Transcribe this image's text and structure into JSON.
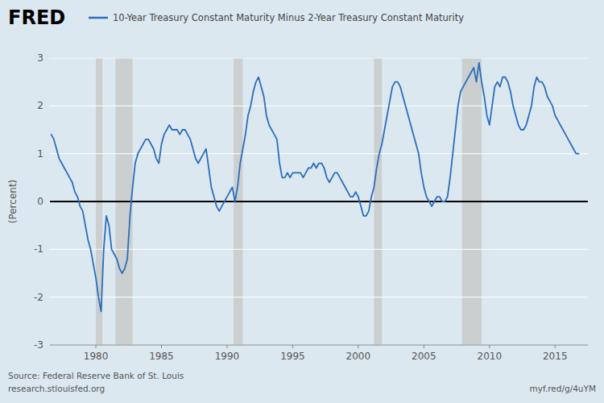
{
  "chart_data": {
    "type": "line",
    "ylabel": "(Percent)",
    "annotations": [
      "FRED",
      "Source: Federal Reserve Bank of St. Louis",
      "research.stlouisfed.org",
      "myf.red/g/4uYM"
    ],
    "legend": "top left",
    "grid": true,
    "xlim": [
      1976.5,
      2017.5
    ],
    "xticks": [
      1980,
      1985,
      1990,
      1995,
      2000,
      2005,
      2010,
      2015
    ],
    "ylim": [
      -3,
      3
    ],
    "yticks": [
      -3,
      -2,
      -1,
      0,
      1,
      2,
      3
    ],
    "recessions": [
      [
        1980.0,
        1980.5
      ],
      [
        1981.5,
        1982.8
      ],
      [
        1990.5,
        1991.2
      ],
      [
        2001.2,
        2001.8
      ],
      [
        2007.9,
        2009.4
      ]
    ],
    "x": [
      1976.6,
      1976.8,
      1977.0,
      1977.2,
      1977.4,
      1977.6,
      1977.8,
      1978.0,
      1978.2,
      1978.4,
      1978.6,
      1978.8,
      1979.0,
      1979.2,
      1979.4,
      1979.6,
      1979.8,
      1980.0,
      1980.2,
      1980.4,
      1980.6,
      1980.8,
      1981.0,
      1981.2,
      1981.4,
      1981.6,
      1981.8,
      1982.0,
      1982.2,
      1982.4,
      1982.6,
      1982.8,
      1983.0,
      1983.2,
      1983.4,
      1983.6,
      1983.8,
      1984.0,
      1984.2,
      1984.4,
      1984.6,
      1984.8,
      1985.0,
      1985.2,
      1985.4,
      1985.6,
      1985.8,
      1986.0,
      1986.2,
      1986.4,
      1986.6,
      1986.8,
      1987.0,
      1987.2,
      1987.4,
      1987.6,
      1987.8,
      1988.0,
      1988.2,
      1988.4,
      1988.6,
      1988.8,
      1989.0,
      1989.2,
      1989.4,
      1989.6,
      1989.8,
      1990.0,
      1990.2,
      1990.4,
      1990.6,
      1990.8,
      1991.0,
      1991.2,
      1991.4,
      1991.6,
      1991.8,
      1992.0,
      1992.2,
      1992.4,
      1992.6,
      1992.8,
      1993.0,
      1993.2,
      1993.4,
      1993.6,
      1993.8,
      1994.0,
      1994.2,
      1994.4,
      1994.6,
      1994.8,
      1995.0,
      1995.2,
      1995.4,
      1995.6,
      1995.8,
      1996.0,
      1996.2,
      1996.4,
      1996.6,
      1996.8,
      1997.0,
      1997.2,
      1997.4,
      1997.6,
      1997.8,
      1998.0,
      1998.2,
      1998.4,
      1998.6,
      1998.8,
      1999.0,
      1999.2,
      1999.4,
      1999.6,
      1999.8,
      2000.0,
      2000.2,
      2000.4,
      2000.6,
      2000.8,
      2001.0,
      2001.2,
      2001.4,
      2001.6,
      2001.8,
      2002.0,
      2002.2,
      2002.4,
      2002.6,
      2002.8,
      2003.0,
      2003.2,
      2003.4,
      2003.6,
      2003.8,
      2004.0,
      2004.2,
      2004.4,
      2004.6,
      2004.8,
      2005.0,
      2005.2,
      2005.4,
      2005.6,
      2005.8,
      2006.0,
      2006.2,
      2006.4,
      2006.6,
      2006.8,
      2007.0,
      2007.2,
      2007.4,
      2007.6,
      2007.8,
      2008.0,
      2008.2,
      2008.4,
      2008.6,
      2008.8,
      2009.0,
      2009.2,
      2009.4,
      2009.6,
      2009.8,
      2010.0,
      2010.2,
      2010.4,
      2010.6,
      2010.8,
      2011.0,
      2011.2,
      2011.4,
      2011.6,
      2011.8,
      2012.0,
      2012.2,
      2012.4,
      2012.6,
      2012.8,
      2013.0,
      2013.2,
      2013.4,
      2013.6,
      2013.8,
      2014.0,
      2014.2,
      2014.4,
      2014.6,
      2014.8,
      2015.0,
      2015.2,
      2015.4,
      2015.6,
      2015.8,
      2016.0,
      2016.2,
      2016.4,
      2016.6,
      2016.8
    ],
    "series": [
      {
        "name": "10-Year Treasury Constant Maturity Minus 2-Year Treasury Constant Maturity",
        "color": "#2a6ebb",
        "values": [
          1.4,
          1.3,
          1.1,
          0.9,
          0.8,
          0.7,
          0.6,
          0.5,
          0.4,
          0.2,
          0.1,
          -0.1,
          -0.2,
          -0.5,
          -0.8,
          -1.0,
          -1.3,
          -1.6,
          -2.0,
          -2.3,
          -1.0,
          -0.3,
          -0.5,
          -1.0,
          -1.1,
          -1.2,
          -1.4,
          -1.5,
          -1.4,
          -1.2,
          -0.3,
          0.3,
          0.8,
          1.0,
          1.1,
          1.2,
          1.3,
          1.3,
          1.2,
          1.1,
          0.9,
          0.8,
          1.2,
          1.4,
          1.5,
          1.6,
          1.5,
          1.5,
          1.5,
          1.4,
          1.5,
          1.5,
          1.4,
          1.3,
          1.1,
          0.9,
          0.8,
          0.9,
          1.0,
          1.1,
          0.7,
          0.3,
          0.1,
          -0.1,
          -0.2,
          -0.1,
          0.0,
          0.1,
          0.2,
          0.3,
          0.0,
          0.3,
          0.8,
          1.1,
          1.4,
          1.8,
          2.0,
          2.3,
          2.5,
          2.6,
          2.4,
          2.2,
          1.8,
          1.6,
          1.5,
          1.4,
          1.3,
          0.8,
          0.5,
          0.5,
          0.6,
          0.5,
          0.6,
          0.6,
          0.6,
          0.6,
          0.5,
          0.6,
          0.7,
          0.7,
          0.8,
          0.7,
          0.8,
          0.8,
          0.7,
          0.5,
          0.4,
          0.5,
          0.6,
          0.6,
          0.5,
          0.4,
          0.3,
          0.2,
          0.1,
          0.1,
          0.2,
          0.1,
          -0.1,
          -0.3,
          -0.3,
          -0.2,
          0.1,
          0.3,
          0.7,
          1.0,
          1.2,
          1.5,
          1.8,
          2.1,
          2.4,
          2.5,
          2.5,
          2.4,
          2.2,
          2.0,
          1.8,
          1.6,
          1.4,
          1.2,
          1.0,
          0.6,
          0.3,
          0.1,
          0.0,
          -0.1,
          0.0,
          0.1,
          0.1,
          0.0,
          0.0,
          0.1,
          0.5,
          1.0,
          1.5,
          2.0,
          2.3,
          2.4,
          2.5,
          2.6,
          2.7,
          2.8,
          2.5,
          2.9,
          2.5,
          2.2,
          1.8,
          1.6,
          2.0,
          2.4,
          2.5,
          2.4,
          2.6,
          2.6,
          2.5,
          2.3,
          2.0,
          1.8,
          1.6,
          1.5,
          1.5,
          1.6,
          1.8,
          2.0,
          2.4,
          2.6,
          2.5,
          2.5,
          2.4,
          2.2,
          2.1,
          2.0,
          1.8,
          1.7,
          1.6,
          1.5,
          1.4,
          1.3,
          1.2,
          1.1,
          1.0,
          1.0
        ]
      }
    ]
  }
}
